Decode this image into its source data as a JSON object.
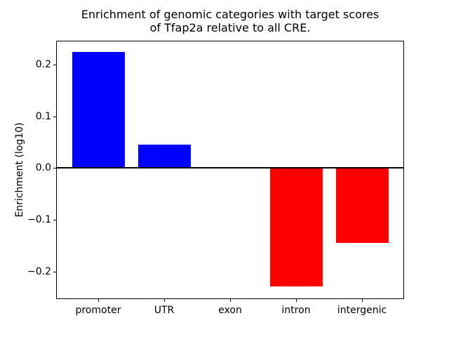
{
  "figure": {
    "background": "#ffffff",
    "axis_color": "#000000"
  },
  "chart_data": {
    "type": "bar",
    "title": "Enrichment of genomic categories with target scores\nof Tfap2a relative to all CRE.",
    "title_lines": [
      "Enrichment of genomic categories with target scores",
      "of Tfap2a relative to all CRE."
    ],
    "xlabel": "",
    "ylabel": "Enrichment (log10)",
    "categories": [
      "promoter",
      "UTR",
      "exon",
      "intron",
      "intergenic"
    ],
    "values": [
      0.224,
      0.045,
      0.0,
      -0.228,
      -0.145
    ],
    "bar_colors": [
      "#0000ff",
      "#0000ff",
      "#0000ff",
      "#ff0000",
      "#ff0000"
    ],
    "positive_color": "#0000ff",
    "negative_color": "#ff0000",
    "ylim": [
      -0.253,
      0.246
    ],
    "yticks": [
      0.2,
      0.1,
      0.0,
      -0.1,
      -0.2
    ],
    "ytick_labels": [
      "0.2",
      "0.1",
      "0.0",
      "−0.1",
      "−0.2"
    ],
    "grid": false,
    "legend": null,
    "zero_line": true
  }
}
